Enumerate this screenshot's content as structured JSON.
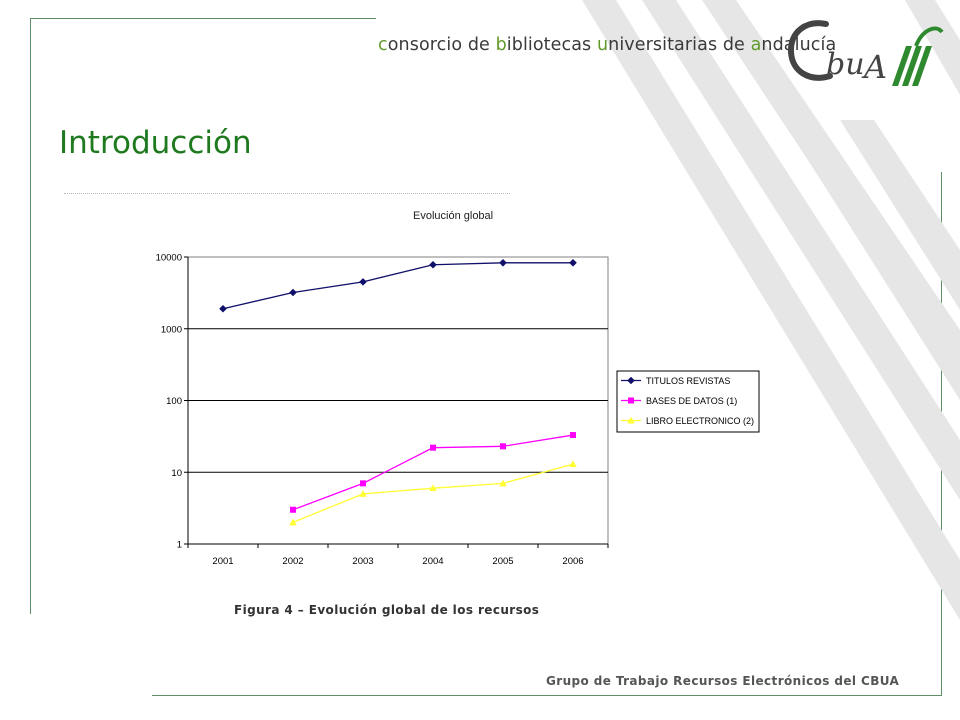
{
  "header": {
    "org_parts": [
      {
        "text": "c",
        "accent": true
      },
      {
        "text": "onsorcio de ",
        "accent": false
      },
      {
        "text": "b",
        "accent": true
      },
      {
        "text": "ibliotecas ",
        "accent": false
      },
      {
        "text": "u",
        "accent": true
      },
      {
        "text": "niversitarias de ",
        "accent": false
      },
      {
        "text": "a",
        "accent": true
      },
      {
        "text": "ndalucía",
        "accent": false
      }
    ],
    "logo_text": "CBUA"
  },
  "slide": {
    "title": "Introducción",
    "caption": "Figura 4 – Evolución global de los recursos",
    "footer": "Grupo de Trabajo Recursos Electrónicos del CBUA"
  },
  "colors": {
    "title": "#1f7a1f",
    "accent": "#5f9a2a",
    "frame": "#5f8f66"
  },
  "chart_data": {
    "type": "line",
    "title": "Evolución global",
    "xlabel": "",
    "ylabel": "",
    "y_scale": "log",
    "ylim": [
      1,
      10000
    ],
    "y_ticks": [
      "1",
      "10",
      "100",
      "1000",
      "10000"
    ],
    "categories": [
      "2001",
      "2002",
      "2003",
      "2004",
      "2005",
      "2006"
    ],
    "grid": "horizontal",
    "legend_position": "right",
    "series": [
      {
        "name": "TITULOS REVISTAS",
        "color": "#10106a",
        "marker": "diamond",
        "values": [
          1900,
          3200,
          4500,
          7800,
          8300,
          8300
        ]
      },
      {
        "name": "BASES DE DATOS (1)",
        "color": "#ff00ff",
        "marker": "square",
        "values": [
          null,
          3,
          7,
          22,
          23,
          33
        ]
      },
      {
        "name": "LIBRO ELECTRONICO (2)",
        "color": "#ffff33",
        "marker": "triangle",
        "values": [
          null,
          2,
          5,
          6,
          7,
          13
        ]
      }
    ]
  }
}
